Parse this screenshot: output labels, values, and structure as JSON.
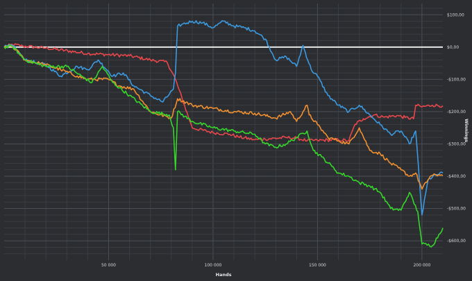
{
  "chart_data": {
    "type": "line",
    "title": "",
    "xlabel": "Hands",
    "ylabel": "Winnings",
    "xlim": [
      0,
      210000
    ],
    "ylim": [
      -660,
      135
    ],
    "x_ticks": [
      {
        "value": 50000,
        "label": "50 000"
      },
      {
        "value": 100000,
        "label": "100 000"
      },
      {
        "value": 150000,
        "label": "150 000"
      },
      {
        "value": 200000,
        "label": "200 000"
      }
    ],
    "y_ticks": [
      {
        "value": 100,
        "label": "$100,00"
      },
      {
        "value": 0,
        "label": "$0,00"
      },
      {
        "value": -100,
        "label": "-$100,00"
      },
      {
        "value": -200,
        "label": "-$200,00"
      },
      {
        "value": -300,
        "label": "-$300,00"
      },
      {
        "value": -400,
        "label": "-$400,00"
      },
      {
        "value": -500,
        "label": "-$500,00"
      },
      {
        "value": -600,
        "label": "-$600,00"
      }
    ],
    "grid": true,
    "baseline": 0,
    "series": [
      {
        "color": "#e8474b",
        "points": [
          [
            0,
            0
          ],
          [
            4000,
            8
          ],
          [
            9000,
            3
          ],
          [
            20000,
            -3
          ],
          [
            40000,
            -20
          ],
          [
            60000,
            -27
          ],
          [
            70000,
            -40
          ],
          [
            78000,
            -47
          ],
          [
            82000,
            -100
          ],
          [
            90000,
            -250
          ],
          [
            100000,
            -265
          ],
          [
            108000,
            -270
          ],
          [
            112000,
            -278
          ],
          [
            120000,
            -287
          ],
          [
            125000,
            -285
          ],
          [
            135000,
            -280
          ],
          [
            140000,
            -282
          ],
          [
            145000,
            -290
          ],
          [
            150000,
            -289
          ],
          [
            160000,
            -287
          ],
          [
            165000,
            -290
          ],
          [
            168000,
            -239
          ],
          [
            172000,
            -222
          ],
          [
            177000,
            -210
          ],
          [
            182000,
            -217
          ],
          [
            188000,
            -212
          ],
          [
            192000,
            -218
          ],
          [
            196000,
            -222
          ],
          [
            197000,
            -180
          ],
          [
            200000,
            -185
          ],
          [
            205000,
            -180
          ],
          [
            210000,
            -182
          ]
        ]
      },
      {
        "color": "#3b9ae1",
        "points": [
          [
            0,
            0
          ],
          [
            4000,
            5
          ],
          [
            10000,
            -40
          ],
          [
            20000,
            -55
          ],
          [
            27000,
            -90
          ],
          [
            35000,
            -60
          ],
          [
            40000,
            -70
          ],
          [
            45000,
            -40
          ],
          [
            52000,
            -90
          ],
          [
            57000,
            -80
          ],
          [
            62000,
            -120
          ],
          [
            70000,
            -150
          ],
          [
            76000,
            -170
          ],
          [
            81000,
            -130
          ],
          [
            82000,
            -80
          ],
          [
            83000,
            65
          ],
          [
            85000,
            70
          ],
          [
            90000,
            80
          ],
          [
            95000,
            75
          ],
          [
            100000,
            60
          ],
          [
            105000,
            80
          ],
          [
            110000,
            65
          ],
          [
            115000,
            60
          ],
          [
            120000,
            50
          ],
          [
            125000,
            25
          ],
          [
            130000,
            -40
          ],
          [
            135000,
            -30
          ],
          [
            140000,
            -60
          ],
          [
            143000,
            5
          ],
          [
            147000,
            -70
          ],
          [
            150000,
            -90
          ],
          [
            155000,
            -150
          ],
          [
            160000,
            -180
          ],
          [
            165000,
            -200
          ],
          [
            170000,
            -180
          ],
          [
            175000,
            -210
          ],
          [
            180000,
            -240
          ],
          [
            185000,
            -270
          ],
          [
            190000,
            -260
          ],
          [
            194000,
            -300
          ],
          [
            197000,
            -260
          ],
          [
            200000,
            -520
          ],
          [
            203000,
            -410
          ],
          [
            207000,
            -395
          ],
          [
            210000,
            -390
          ]
        ]
      },
      {
        "color": "#f2902f",
        "points": [
          [
            0,
            0
          ],
          [
            4000,
            3
          ],
          [
            10000,
            -40
          ],
          [
            20000,
            -55
          ],
          [
            27000,
            -70
          ],
          [
            35000,
            -90
          ],
          [
            40000,
            -100
          ],
          [
            50000,
            -100
          ],
          [
            55000,
            -120
          ],
          [
            62000,
            -130
          ],
          [
            70000,
            -200
          ],
          [
            80000,
            -220
          ],
          [
            83000,
            -160
          ],
          [
            90000,
            -180
          ],
          [
            100000,
            -190
          ],
          [
            110000,
            -200
          ],
          [
            120000,
            -205
          ],
          [
            130000,
            -220
          ],
          [
            137000,
            -200
          ],
          [
            140000,
            -230
          ],
          [
            145000,
            -180
          ],
          [
            146000,
            -210
          ],
          [
            150000,
            -240
          ],
          [
            155000,
            -280
          ],
          [
            160000,
            -290
          ],
          [
            165000,
            -300
          ],
          [
            170000,
            -250
          ],
          [
            175000,
            -320
          ],
          [
            180000,
            -330
          ],
          [
            185000,
            -360
          ],
          [
            190000,
            -380
          ],
          [
            194000,
            -400
          ],
          [
            197000,
            -390
          ],
          [
            200000,
            -440
          ],
          [
            204000,
            -400
          ],
          [
            208000,
            -395
          ],
          [
            210000,
            -398
          ]
        ]
      },
      {
        "color": "#37d62b",
        "points": [
          [
            0,
            0
          ],
          [
            4000,
            2
          ],
          [
            10000,
            -40
          ],
          [
            20000,
            -60
          ],
          [
            30000,
            -60
          ],
          [
            37000,
            -90
          ],
          [
            42000,
            -110
          ],
          [
            47000,
            -60
          ],
          [
            52000,
            -110
          ],
          [
            60000,
            -150
          ],
          [
            70000,
            -200
          ],
          [
            79000,
            -210
          ],
          [
            81000,
            -250
          ],
          [
            82000,
            -380
          ],
          [
            83000,
            -200
          ],
          [
            90000,
            -230
          ],
          [
            100000,
            -250
          ],
          [
            110000,
            -260
          ],
          [
            120000,
            -270
          ],
          [
            125000,
            -300
          ],
          [
            130000,
            -310
          ],
          [
            135000,
            -300
          ],
          [
            140000,
            -280
          ],
          [
            145000,
            -260
          ],
          [
            148000,
            -320
          ],
          [
            152000,
            -340
          ],
          [
            157000,
            -370
          ],
          [
            160000,
            -390
          ],
          [
            165000,
            -400
          ],
          [
            170000,
            -420
          ],
          [
            175000,
            -430
          ],
          [
            180000,
            -450
          ],
          [
            185000,
            -500
          ],
          [
            190000,
            -505
          ],
          [
            194000,
            -450
          ],
          [
            198000,
            -510
          ],
          [
            200000,
            -610
          ],
          [
            205000,
            -615
          ],
          [
            210000,
            -560
          ]
        ]
      }
    ]
  }
}
